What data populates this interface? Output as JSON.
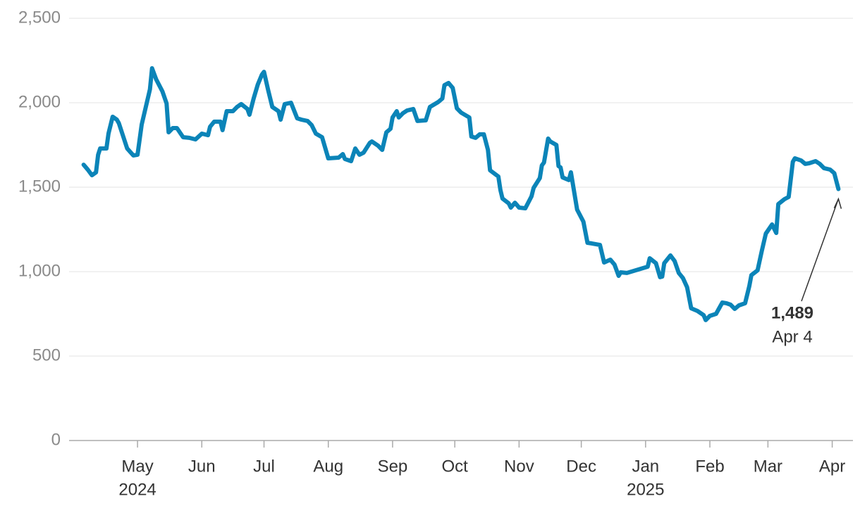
{
  "chart_data": {
    "type": "line",
    "x": [
      "2024-04-05",
      "2024-04-07",
      "2024-04-09",
      "2024-04-11",
      "2024-04-12",
      "2024-04-13",
      "2024-04-16",
      "2024-04-17",
      "2024-04-19",
      "2024-04-21",
      "2024-04-22",
      "2024-04-24",
      "2024-04-26",
      "2024-04-29",
      "2024-05-01",
      "2024-05-03",
      "2024-05-07",
      "2024-05-08",
      "2024-05-10",
      "2024-05-13",
      "2024-05-15",
      "2024-05-16",
      "2024-05-18",
      "2024-05-20",
      "2024-05-23",
      "2024-05-26",
      "2024-05-29",
      "2024-06-01",
      "2024-06-04",
      "2024-06-05",
      "2024-06-07",
      "2024-06-10",
      "2024-06-11",
      "2024-06-13",
      "2024-06-16",
      "2024-06-18",
      "2024-06-20",
      "2024-06-23",
      "2024-06-24",
      "2024-06-26",
      "2024-06-28",
      "2024-06-30",
      "2024-07-01",
      "2024-07-03",
      "2024-07-05",
      "2024-07-08",
      "2024-07-09",
      "2024-07-11",
      "2024-07-14",
      "2024-07-17",
      "2024-07-19",
      "2024-07-22",
      "2024-07-24",
      "2024-07-26",
      "2024-07-29",
      "2024-08-01",
      "2024-08-06",
      "2024-08-08",
      "2024-08-09",
      "2024-08-12",
      "2024-08-14",
      "2024-08-16",
      "2024-08-18",
      "2024-08-21",
      "2024-08-22",
      "2024-08-25",
      "2024-08-27",
      "2024-08-29",
      "2024-08-31",
      "2024-09-01",
      "2024-09-03",
      "2024-09-04",
      "2024-09-06",
      "2024-09-08",
      "2024-09-11",
      "2024-09-13",
      "2024-09-17",
      "2024-09-19",
      "2024-09-23",
      "2024-09-25",
      "2024-09-26",
      "2024-09-28",
      "2024-09-30",
      "2024-10-02",
      "2024-10-04",
      "2024-10-08",
      "2024-10-09",
      "2024-10-11",
      "2024-10-13",
      "2024-10-15",
      "2024-10-17",
      "2024-10-18",
      "2024-10-22",
      "2024-10-23",
      "2024-10-24",
      "2024-10-27",
      "2024-10-28",
      "2024-10-30",
      "2024-11-01",
      "2024-11-04",
      "2024-11-07",
      "2024-11-08",
      "2024-11-11",
      "2024-11-12",
      "2024-11-13",
      "2024-11-15",
      "2024-11-16",
      "2024-11-19",
      "2024-11-20",
      "2024-11-21",
      "2024-11-22",
      "2024-11-25",
      "2024-11-26",
      "2024-11-29",
      "2024-12-02",
      "2024-12-04",
      "2024-12-06",
      "2024-12-10",
      "2024-12-12",
      "2024-12-15",
      "2024-12-17",
      "2024-12-19",
      "2024-12-20",
      "2024-12-23",
      "2025-01-02",
      "2025-01-03",
      "2025-01-06",
      "2025-01-08",
      "2025-01-09",
      "2025-01-10",
      "2025-01-13",
      "2025-01-15",
      "2025-01-17",
      "2025-01-19",
      "2025-01-21",
      "2025-01-23",
      "2025-01-26",
      "2025-01-29",
      "2025-01-30",
      "2025-02-01",
      "2025-02-04",
      "2025-02-07",
      "2025-02-09",
      "2025-02-11",
      "2025-02-13",
      "2025-02-15",
      "2025-02-18",
      "2025-02-20",
      "2025-02-21",
      "2025-02-24",
      "2025-02-26",
      "2025-02-28",
      "2025-03-03",
      "2025-03-05",
      "2025-03-06",
      "2025-03-09",
      "2025-03-11",
      "2025-03-13",
      "2025-03-14",
      "2025-03-17",
      "2025-03-19",
      "2025-03-21",
      "2025-03-24",
      "2025-03-26",
      "2025-03-28",
      "2025-03-31",
      "2025-04-02",
      "2025-04-04"
    ],
    "values": [
      1633,
      1604,
      1571,
      1588,
      1692,
      1729,
      1729,
      1817,
      1917,
      1900,
      1879,
      1804,
      1729,
      1688,
      1692,
      1871,
      2079,
      2204,
      2138,
      2067,
      1996,
      1825,
      1850,
      1850,
      1796,
      1792,
      1783,
      1817,
      1808,
      1858,
      1888,
      1888,
      1838,
      1950,
      1950,
      1975,
      1992,
      1963,
      1929,
      2025,
      2108,
      2167,
      2183,
      2075,
      1975,
      1950,
      1900,
      1992,
      2000,
      1908,
      1900,
      1892,
      1867,
      1817,
      1796,
      1671,
      1675,
      1696,
      1667,
      1654,
      1729,
      1692,
      1704,
      1762,
      1771,
      1746,
      1721,
      1825,
      1846,
      1913,
      1950,
      1913,
      1938,
      1954,
      1963,
      1892,
      1896,
      1975,
      2004,
      2025,
      2104,
      2117,
      2088,
      1967,
      1942,
      1913,
      1800,
      1792,
      1813,
      1813,
      1721,
      1600,
      1563,
      1483,
      1433,
      1404,
      1379,
      1408,
      1379,
      1375,
      1446,
      1496,
      1554,
      1629,
      1646,
      1788,
      1771,
      1750,
      1625,
      1617,
      1558,
      1542,
      1588,
      1367,
      1296,
      1171,
      1167,
      1158,
      1054,
      1071,
      1042,
      975,
      996,
      992,
      1029,
      1079,
      1050,
      967,
      971,
      1050,
      1096,
      1063,
      992,
      962,
      908,
      783,
      767,
      742,
      713,
      738,
      750,
      817,
      813,
      804,
      779,
      800,
      813,
      913,
      979,
      1008,
      1121,
      1225,
      1279,
      1229,
      1400,
      1429,
      1442,
      1650,
      1671,
      1658,
      1638,
      1642,
      1654,
      1638,
      1613,
      1604,
      1583,
      1489
    ],
    "color": "#0b84b8",
    "xlim": [
      "2024-03-29",
      "2025-04-11"
    ],
    "xticks": [
      {
        "value": "2024-05-01",
        "label": "May"
      },
      {
        "value": "2024-06-01",
        "label": "Jun"
      },
      {
        "value": "2024-07-01",
        "label": "Jul"
      },
      {
        "value": "2024-08-01",
        "label": "Aug"
      },
      {
        "value": "2024-09-01",
        "label": "Sep"
      },
      {
        "value": "2024-10-01",
        "label": "Oct"
      },
      {
        "value": "2024-11-01",
        "label": "Nov"
      },
      {
        "value": "2024-12-01",
        "label": "Dec"
      },
      {
        "value": "2025-01-01",
        "label": "Jan"
      },
      {
        "value": "2025-02-01",
        "label": "Feb"
      },
      {
        "value": "2025-03-01",
        "label": "Mar"
      },
      {
        "value": "2025-04-01",
        "label": "Apr"
      }
    ],
    "year_labels": [
      {
        "value": "2024-05-01",
        "label": "2024"
      },
      {
        "value": "2025-01-01",
        "label": "2025"
      }
    ],
    "ylim": [
      0,
      2500
    ],
    "yticks": [
      0,
      500,
      {
        "value": 1000,
        "label": "1,000"
      },
      {
        "value": 1500,
        "label": "1,500"
      },
      {
        "value": 2000,
        "label": "2,000"
      },
      {
        "value": 2500,
        "label": "2,500"
      }
    ],
    "grid": true,
    "annotation": {
      "text": "1,489",
      "date": "Apr 4"
    }
  }
}
